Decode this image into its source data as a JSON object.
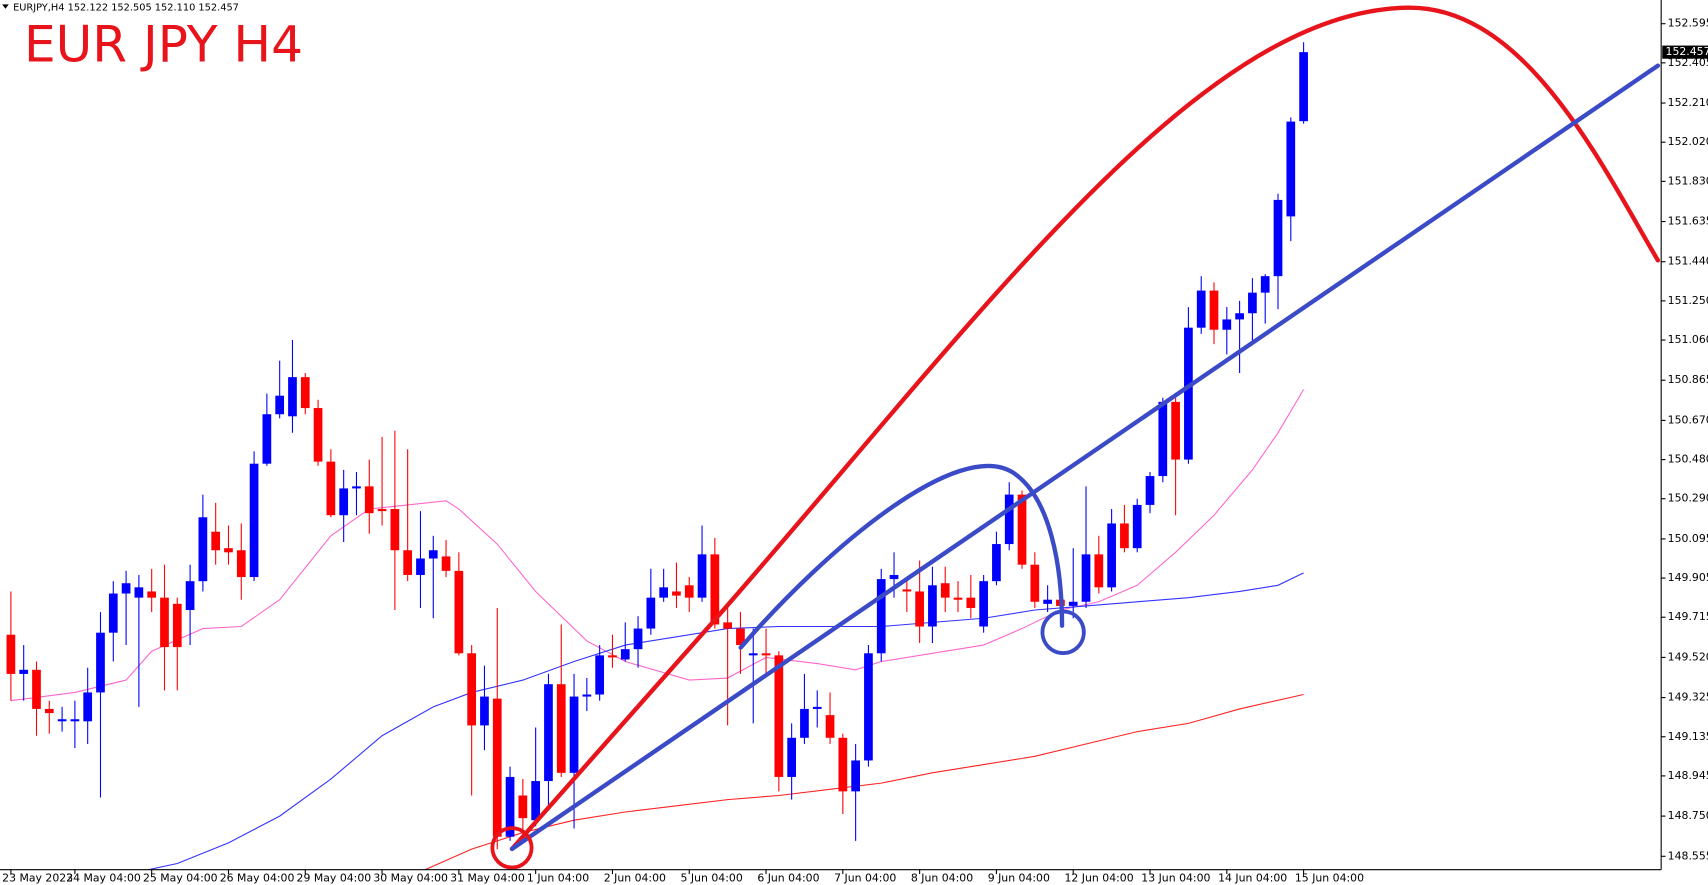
{
  "chart_data": {
    "type": "candlestick",
    "title": "EUR JPY H4",
    "header": "EURJPY,H4  152.122 152.505 152.110 152.457",
    "up_color": "#0000ff",
    "down_color": "#ff0000",
    "categories": [
      "23 May 2023",
      null,
      null,
      null,
      null,
      "24 May 04:00",
      null,
      null,
      null,
      null,
      null,
      "25 May 04:00",
      null,
      null,
      null,
      null,
      null,
      "26 May 04:00",
      null,
      null,
      null,
      null,
      null,
      "29 May 04:00",
      null,
      null,
      null,
      null,
      null,
      "30 May 04:00",
      null,
      null,
      null,
      null,
      null,
      "31 May 04:00",
      null,
      null,
      null,
      null,
      null,
      "1 Jun 04:00",
      null,
      null,
      null,
      null,
      null,
      "2 Jun 04:00",
      null,
      null,
      null,
      null,
      null,
      "5 Jun 04:00",
      null,
      null,
      null,
      null,
      null,
      "6 Jun 04:00",
      null,
      null,
      null,
      null,
      null,
      "7 Jun 04:00",
      null,
      null,
      null,
      null,
      null,
      "8 Jun 04:00",
      null,
      null,
      null,
      null,
      null,
      "9 Jun 04:00",
      null,
      null,
      null,
      null,
      null,
      "12 Jun 04:00",
      null,
      null,
      null,
      null,
      null,
      "13 Jun 04:00",
      null,
      null,
      null,
      null,
      null,
      "14 Jun 04:00",
      null,
      null,
      null,
      null,
      null,
      "15 Jun 04:00"
    ],
    "open": [
      149.63,
      149.44,
      149.46,
      149.27,
      149.21,
      149.21,
      149.21,
      149.35,
      149.64,
      149.83,
      149.81,
      149.84,
      149.81,
      149.78,
      149.75,
      149.89,
      150.13,
      150.05,
      150.04,
      149.91,
      150.46,
      150.7,
      150.69,
      150.88,
      150.73,
      150.47,
      150.21,
      150.34,
      150.35,
      150.24,
      150.24,
      150.04,
      149.92,
      150.0,
      150.01,
      149.94,
      149.54,
      149.19,
      149.32,
      148.65,
      148.85,
      148.73,
      148.92,
      149.39,
      148.96,
      149.33,
      149.34,
      149.53,
      149.51,
      149.56,
      149.66,
      149.81,
      149.84,
      149.87,
      149.81,
      150.02,
      149.69,
      149.66,
      149.53,
      149.54,
      149.53,
      148.94,
      149.13,
      149.27,
      149.24,
      149.13,
      148.87,
      149.02,
      149.54,
      149.9,
      149.85,
      149.84,
      149.67,
      149.88,
      149.81,
      149.81,
      149.67,
      149.89,
      150.07,
      150.31,
      149.97,
      149.78,
      149.8,
      149.77,
      149.79,
      150.02,
      149.86,
      150.17,
      150.05,
      150.26,
      150.4,
      150.76,
      150.48,
      151.12,
      151.3,
      151.11,
      151.16,
      151.19,
      151.29,
      151.37,
      151.66,
      152.122
    ],
    "high": [
      149.84,
      149.58,
      149.5,
      149.31,
      149.28,
      149.31,
      149.47,
      149.74,
      149.89,
      149.94,
      149.92,
      149.95,
      149.97,
      149.81,
      149.97,
      150.31,
      150.27,
      150.16,
      150.17,
      150.52,
      150.8,
      150.96,
      151.06,
      150.9,
      150.77,
      150.53,
      150.43,
      150.42,
      150.48,
      150.59,
      150.62,
      150.53,
      150.23,
      150.11,
      150.09,
      150.03,
      149.58,
      149.48,
      149.76,
      148.99,
      148.93,
      149.18,
      149.44,
      149.68,
      149.44,
      149.42,
      149.58,
      149.63,
      149.69,
      149.72,
      149.95,
      149.95,
      149.98,
      149.91,
      150.16,
      150.1,
      149.76,
      149.74,
      149.66,
      149.66,
      149.55,
      149.2,
      149.44,
      149.36,
      149.35,
      149.15,
      149.1,
      149.58,
      149.95,
      150.03,
      149.91,
      149.99,
      149.96,
      149.96,
      149.89,
      149.92,
      149.92,
      150.13,
      150.37,
      150.33,
      150.03,
      149.87,
      149.84,
      150.05,
      150.35,
      150.11,
      150.24,
      150.26,
      150.29,
      150.42,
      150.78,
      150.78,
      151.22,
      151.37,
      151.34,
      151.22,
      151.25,
      151.36,
      151.38,
      151.77,
      152.14,
      152.505
    ],
    "low": [
      149.31,
      149.31,
      149.14,
      149.15,
      149.16,
      149.08,
      149.1,
      148.84,
      149.5,
      149.58,
      149.28,
      149.74,
      149.36,
      149.36,
      149.58,
      149.84,
      149.97,
      149.97,
      149.8,
      149.89,
      150.45,
      150.68,
      150.61,
      150.7,
      150.45,
      150.2,
      150.08,
      150.21,
      150.12,
      150.16,
      149.75,
      149.89,
      149.76,
      149.71,
      149.91,
      149.53,
      148.85,
      149.07,
      148.59,
      148.63,
      148.62,
      148.7,
      148.78,
      148.94,
      148.69,
      149.26,
      149.31,
      149.47,
      149.5,
      149.47,
      149.63,
      149.79,
      149.76,
      149.74,
      149.79,
      149.66,
      149.19,
      149.44,
      149.2,
      149.44,
      148.87,
      148.83,
      149.1,
      149.18,
      149.1,
      148.76,
      148.63,
      148.99,
      149.5,
      149.81,
      149.74,
      149.59,
      149.59,
      149.74,
      149.74,
      149.71,
      149.64,
      149.87,
      150.04,
      149.95,
      149.76,
      149.74,
      149.72,
      149.71,
      149.76,
      149.83,
      149.84,
      150.03,
      150.03,
      150.22,
      150.37,
      150.21,
      150.46,
      151.09,
      151.04,
      150.99,
      150.9,
      151.04,
      151.14,
      151.21,
      151.54,
      152.11
    ],
    "close": [
      149.44,
      149.46,
      149.27,
      149.25,
      149.22,
      149.22,
      149.35,
      149.64,
      149.83,
      149.88,
      149.86,
      149.81,
      149.57,
      149.57,
      149.89,
      150.2,
      150.04,
      150.03,
      149.91,
      150.46,
      150.7,
      150.79,
      150.88,
      150.73,
      150.47,
      150.21,
      150.34,
      150.35,
      150.22,
      150.23,
      150.04,
      149.92,
      150.0,
      150.04,
      149.94,
      149.54,
      149.19,
      149.33,
      148.65,
      148.94,
      148.74,
      148.92,
      149.39,
      148.96,
      149.33,
      149.34,
      149.53,
      149.52,
      149.56,
      149.66,
      149.81,
      149.86,
      149.82,
      149.81,
      150.02,
      149.68,
      149.66,
      149.58,
      149.54,
      149.53,
      148.94,
      149.13,
      149.27,
      149.28,
      149.13,
      148.87,
      149.02,
      149.54,
      149.9,
      149.92,
      149.84,
      149.67,
      149.87,
      149.81,
      149.8,
      149.76,
      149.89,
      150.07,
      150.31,
      149.97,
      149.79,
      149.8,
      149.77,
      149.79,
      150.02,
      149.86,
      150.17,
      150.05,
      150.26,
      150.4,
      150.76,
      150.48,
      151.12,
      151.3,
      151.11,
      151.16,
      151.19,
      151.29,
      151.37,
      151.74,
      152.12,
      152.457
    ],
    "moving_averages": [
      {
        "color": "#ff66cc",
        "x": [
          0,
          5,
          9,
          11,
          15,
          18,
          21,
          25,
          28,
          31,
          34,
          35,
          38,
          41,
          45,
          48,
          53,
          56,
          59,
          63,
          66,
          68,
          72,
          76,
          79,
          82,
          85,
          88,
          91,
          94,
          97,
          99,
          101
        ],
        "values": [
          149.31,
          149.35,
          149.41,
          149.55,
          149.66,
          149.67,
          149.8,
          150.11,
          150.24,
          150.26,
          150.28,
          150.24,
          150.07,
          149.84,
          149.6,
          149.5,
          149.41,
          149.42,
          149.52,
          149.49,
          149.46,
          149.5,
          149.54,
          149.58,
          149.66,
          149.75,
          149.79,
          149.87,
          150.03,
          150.21,
          150.43,
          150.61,
          150.82
        ]
      },
      {
        "color": "#3333ff",
        "x": [
          10,
          13,
          17,
          21,
          25,
          29,
          33,
          36,
          40,
          44,
          48,
          52,
          56,
          60,
          64,
          68,
          72,
          76,
          80,
          84,
          88,
          92,
          96,
          99,
          101
        ],
        "values": [
          148.48,
          148.52,
          148.62,
          148.75,
          148.93,
          149.14,
          149.28,
          149.35,
          149.41,
          149.5,
          149.58,
          149.62,
          149.66,
          149.67,
          149.67,
          149.67,
          149.69,
          149.71,
          149.75,
          149.77,
          149.79,
          149.81,
          149.84,
          149.87,
          149.93
        ]
      },
      {
        "color": "#ff2222",
        "x": [
          32,
          36,
          40,
          44,
          48,
          52,
          56,
          60,
          64,
          68,
          72,
          76,
          80,
          84,
          88,
          92,
          96,
          101
        ],
        "values": [
          148.48,
          148.59,
          148.67,
          148.73,
          148.77,
          148.8,
          148.83,
          148.85,
          148.88,
          148.91,
          148.96,
          149.0,
          149.04,
          149.1,
          149.16,
          149.2,
          149.27,
          149.34
        ]
      }
    ],
    "ylim": [
      148.49,
      152.71
    ],
    "yticks": [
      152.595,
      152.405,
      {
        "value": 152.21,
        "label": "152.210"
      },
      {
        "value": 152.02,
        "label": "152.020"
      },
      {
        "value": 151.83,
        "label": "151.830"
      },
      151.635,
      {
        "value": 151.44,
        "label": "151.440"
      },
      {
        "value": 151.25,
        "label": "151.250"
      },
      {
        "value": 151.06,
        "label": "151.060"
      },
      150.865,
      {
        "value": 150.67,
        "label": "150.670"
      },
      {
        "value": 150.48,
        "label": "150.480"
      },
      {
        "value": 150.29,
        "label": "150.290"
      },
      150.095,
      149.905,
      149.715,
      {
        "value": 149.52,
        "label": "149.520"
      },
      149.325,
      149.135,
      148.945,
      {
        "value": 148.75,
        "label": "148.750"
      },
      148.555
    ],
    "grid": false
  }
}
